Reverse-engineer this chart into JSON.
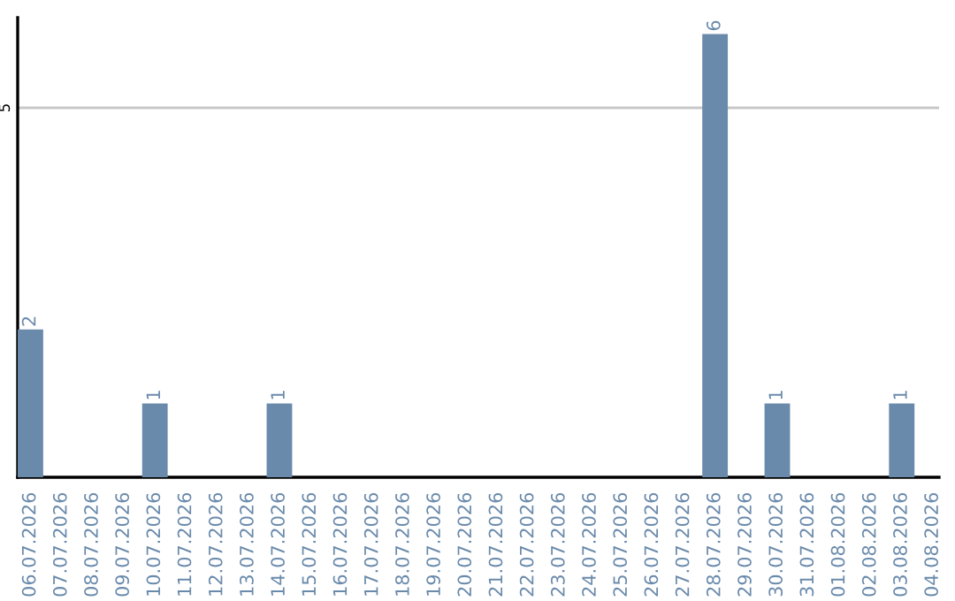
{
  "chart_data": {
    "type": "bar",
    "categories": [
      "06.07.2026",
      "07.07.2026",
      "08.07.2026",
      "09.07.2026",
      "10.07.2026",
      "11.07.2026",
      "12.07.2026",
      "13.07.2026",
      "14.07.2026",
      "15.07.2026",
      "16.07.2026",
      "17.07.2026",
      "18.07.2026",
      "19.07.2026",
      "20.07.2026",
      "21.07.2026",
      "22.07.2026",
      "23.07.2026",
      "24.07.2026",
      "25.07.2026",
      "26.07.2026",
      "27.07.2026",
      "28.07.2026",
      "29.07.2026",
      "30.07.2026",
      "31.07.2026",
      "01.08.2026",
      "02.08.2026",
      "03.08.2026",
      "04.08.2026"
    ],
    "values": [
      2,
      0,
      0,
      0,
      1,
      0,
      0,
      0,
      1,
      0,
      0,
      0,
      0,
      0,
      0,
      0,
      0,
      0,
      0,
      0,
      0,
      0,
      6,
      0,
      1,
      0,
      0,
      0,
      1,
      0
    ],
    "value_labels": [
      "2",
      null,
      null,
      null,
      "1",
      null,
      null,
      null,
      "1",
      null,
      null,
      null,
      null,
      null,
      null,
      null,
      null,
      null,
      null,
      null,
      null,
      null,
      "6",
      null,
      "1",
      null,
      null,
      null,
      "1",
      null
    ],
    "color": "#6a8aab",
    "ylim": [
      0,
      6.22
    ],
    "yticks": [
      5
    ],
    "grid": "y"
  }
}
